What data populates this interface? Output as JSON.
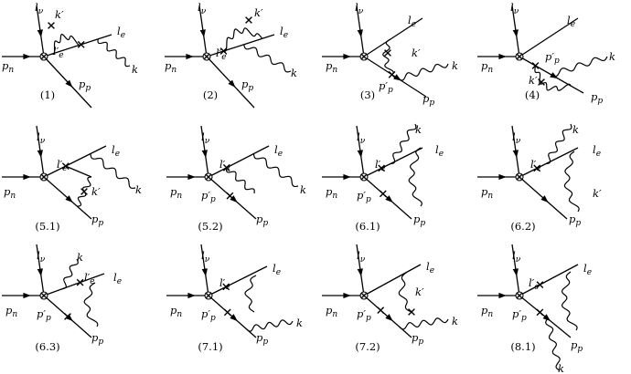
{
  "diagrams": [
    {
      "caption": "(1)",
      "labels": [
        "l_ν",
        "k′",
        "l_e",
        "l′_e",
        "p_n",
        "p_p",
        "k"
      ]
    },
    {
      "caption": "(2)",
      "labels": [
        "l_ν",
        "k′",
        "l_e",
        "l′_e",
        "p_n",
        "p_p",
        "k"
      ]
    },
    {
      "caption": "(3)",
      "labels": [
        "l_ν",
        "l_e",
        "k′",
        "p′_p",
        "p_n",
        "p_p",
        "k"
      ]
    },
    {
      "caption": "(4)",
      "labels": [
        "l_ν",
        "l_e",
        "p′_p",
        "k′",
        "p_n",
        "p_p",
        "k"
      ]
    },
    {
      "caption": "(5.1)",
      "labels": [
        "l_ν",
        "l_e",
        "l′_e",
        "k′",
        "p_n",
        "p_p",
        "k"
      ]
    },
    {
      "caption": "(5.2)",
      "labels": [
        "l_ν",
        "l_e",
        "l′_e",
        "p′_p",
        "p_n",
        "p_p",
        "k"
      ]
    },
    {
      "caption": "(6.1)",
      "labels": [
        "l_ν",
        "k",
        "l_e",
        "l′_e",
        "p′_p",
        "p_n",
        "p_p"
      ]
    },
    {
      "caption": "(6.2)",
      "labels": [
        "l_ν",
        "k",
        "l_e",
        "l′_e",
        "k′",
        "p_n",
        "p_p"
      ]
    },
    {
      "caption": "(6.3)",
      "labels": [
        "l_ν",
        "k",
        "l′_e",
        "l_e",
        "p′_p",
        "p_n",
        "p_p"
      ]
    },
    {
      "caption": "(7.1)",
      "labels": [
        "l_ν",
        "l′_e",
        "l_e",
        "p′_p",
        "p_n",
        "p_p",
        "k"
      ]
    },
    {
      "caption": "(7.2)",
      "labels": [
        "l_ν",
        "l_e",
        "k′",
        "p′_p",
        "p_n",
        "p_p",
        "k"
      ]
    },
    {
      "caption": "(8.1)",
      "labels": [
        "l_ν",
        "l′_e",
        "l_e",
        "p′_p",
        "p_n",
        "p_p",
        "k"
      ]
    }
  ]
}
